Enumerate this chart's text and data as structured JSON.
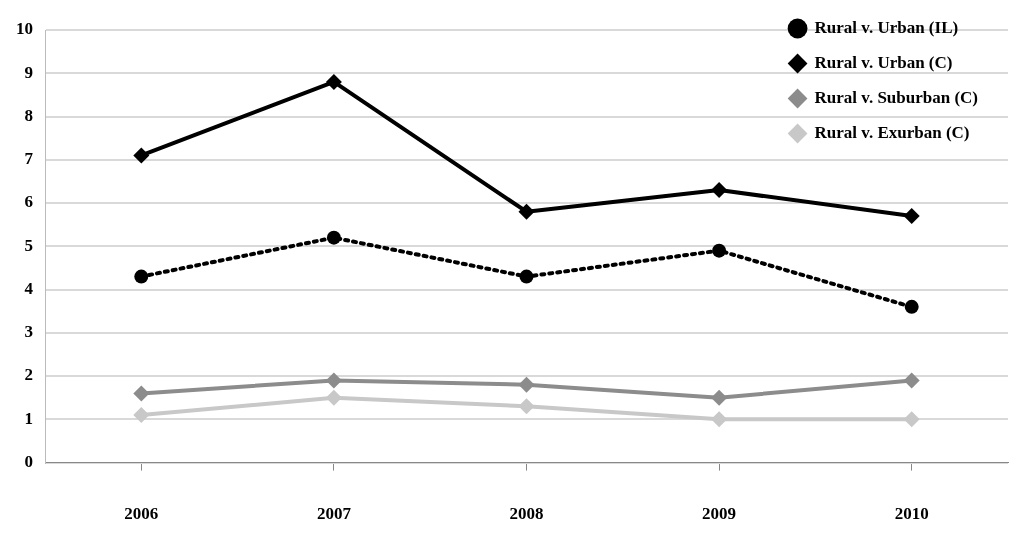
{
  "chart_data": {
    "type": "line",
    "categories": [
      "2006",
      "2007",
      "2008",
      "2009",
      "2010"
    ],
    "series": [
      {
        "name": "Rural v. Urban (IL)",
        "color": "#000000",
        "marker": "circle",
        "line_style": "dotted",
        "values": [
          4.3,
          5.2,
          4.3,
          4.9,
          3.6
        ]
      },
      {
        "name": "Rural v. Urban (C)",
        "color": "#000000",
        "marker": "diamond",
        "line_style": "solid",
        "values": [
          7.1,
          8.8,
          5.8,
          6.3,
          5.7
        ]
      },
      {
        "name": "Rural v. Suburban (C)",
        "color": "#8c8c8c",
        "marker": "diamond",
        "line_style": "solid",
        "values": [
          1.6,
          1.9,
          1.8,
          1.5,
          1.9
        ]
      },
      {
        "name": "Rural v. Exurban (C)",
        "color": "#c8c8c8",
        "marker": "diamond",
        "line_style": "solid",
        "values": [
          1.1,
          1.5,
          1.3,
          1.0,
          1.0
        ]
      }
    ],
    "ylim": [
      0,
      10
    ],
    "yticks": [
      0,
      1,
      2,
      3,
      4,
      5,
      6,
      7,
      8,
      9,
      10
    ],
    "grid": "y",
    "legend": "top right"
  }
}
